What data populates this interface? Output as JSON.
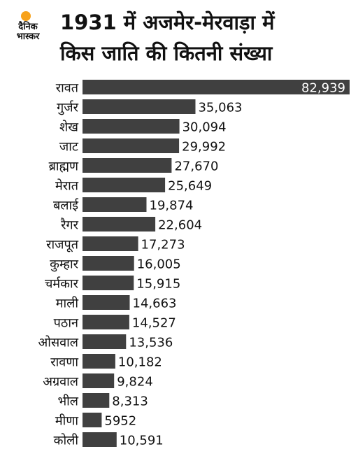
{
  "logo": {
    "line1": "दैनिक",
    "line2": "भास्कर",
    "sun_color": "#f7a21b"
  },
  "title_line1": "1931 में अजमेर-मेरवाड़ा में",
  "title_line2": "किस जाति की कितनी संख्या",
  "colors": {
    "bar": "#404040",
    "text": "#111111",
    "label_on_bar": "#ffffff"
  },
  "chart_data": {
    "type": "bar",
    "orientation": "horizontal",
    "title": "1931 में अजमेर-मेरवाड़ा में किस जाति की कितनी संख्या",
    "categories": [
      "रावत",
      "गुर्जर",
      "शेख",
      "जाट",
      "ब्राह्मण",
      "मेरात",
      "बलाई",
      "रैगर",
      "राजपूत",
      "कुम्हार",
      "चर्मकार",
      "माली",
      "पठान",
      "ओसवाल",
      "रावणा",
      "अग्रवाल",
      "भील",
      "मीणा",
      "कोली"
    ],
    "values": [
      82939,
      35063,
      30094,
      29992,
      27670,
      25649,
      19874,
      22604,
      17273,
      16005,
      15915,
      14663,
      14527,
      13536,
      10182,
      9824,
      8313,
      5952,
      10591
    ],
    "value_labels": [
      "82,939",
      "35,063",
      "30,094",
      "29,992",
      "27,670",
      "25,649",
      "19,874",
      "22,604",
      "17,273",
      "16,005",
      "15,915",
      "14,663",
      "14,527",
      "13,536",
      "10,182",
      "9,824",
      "8,313",
      "5952",
      "10,591"
    ],
    "xlim": [
      0,
      82939
    ],
    "grid": false,
    "legend": "none"
  }
}
